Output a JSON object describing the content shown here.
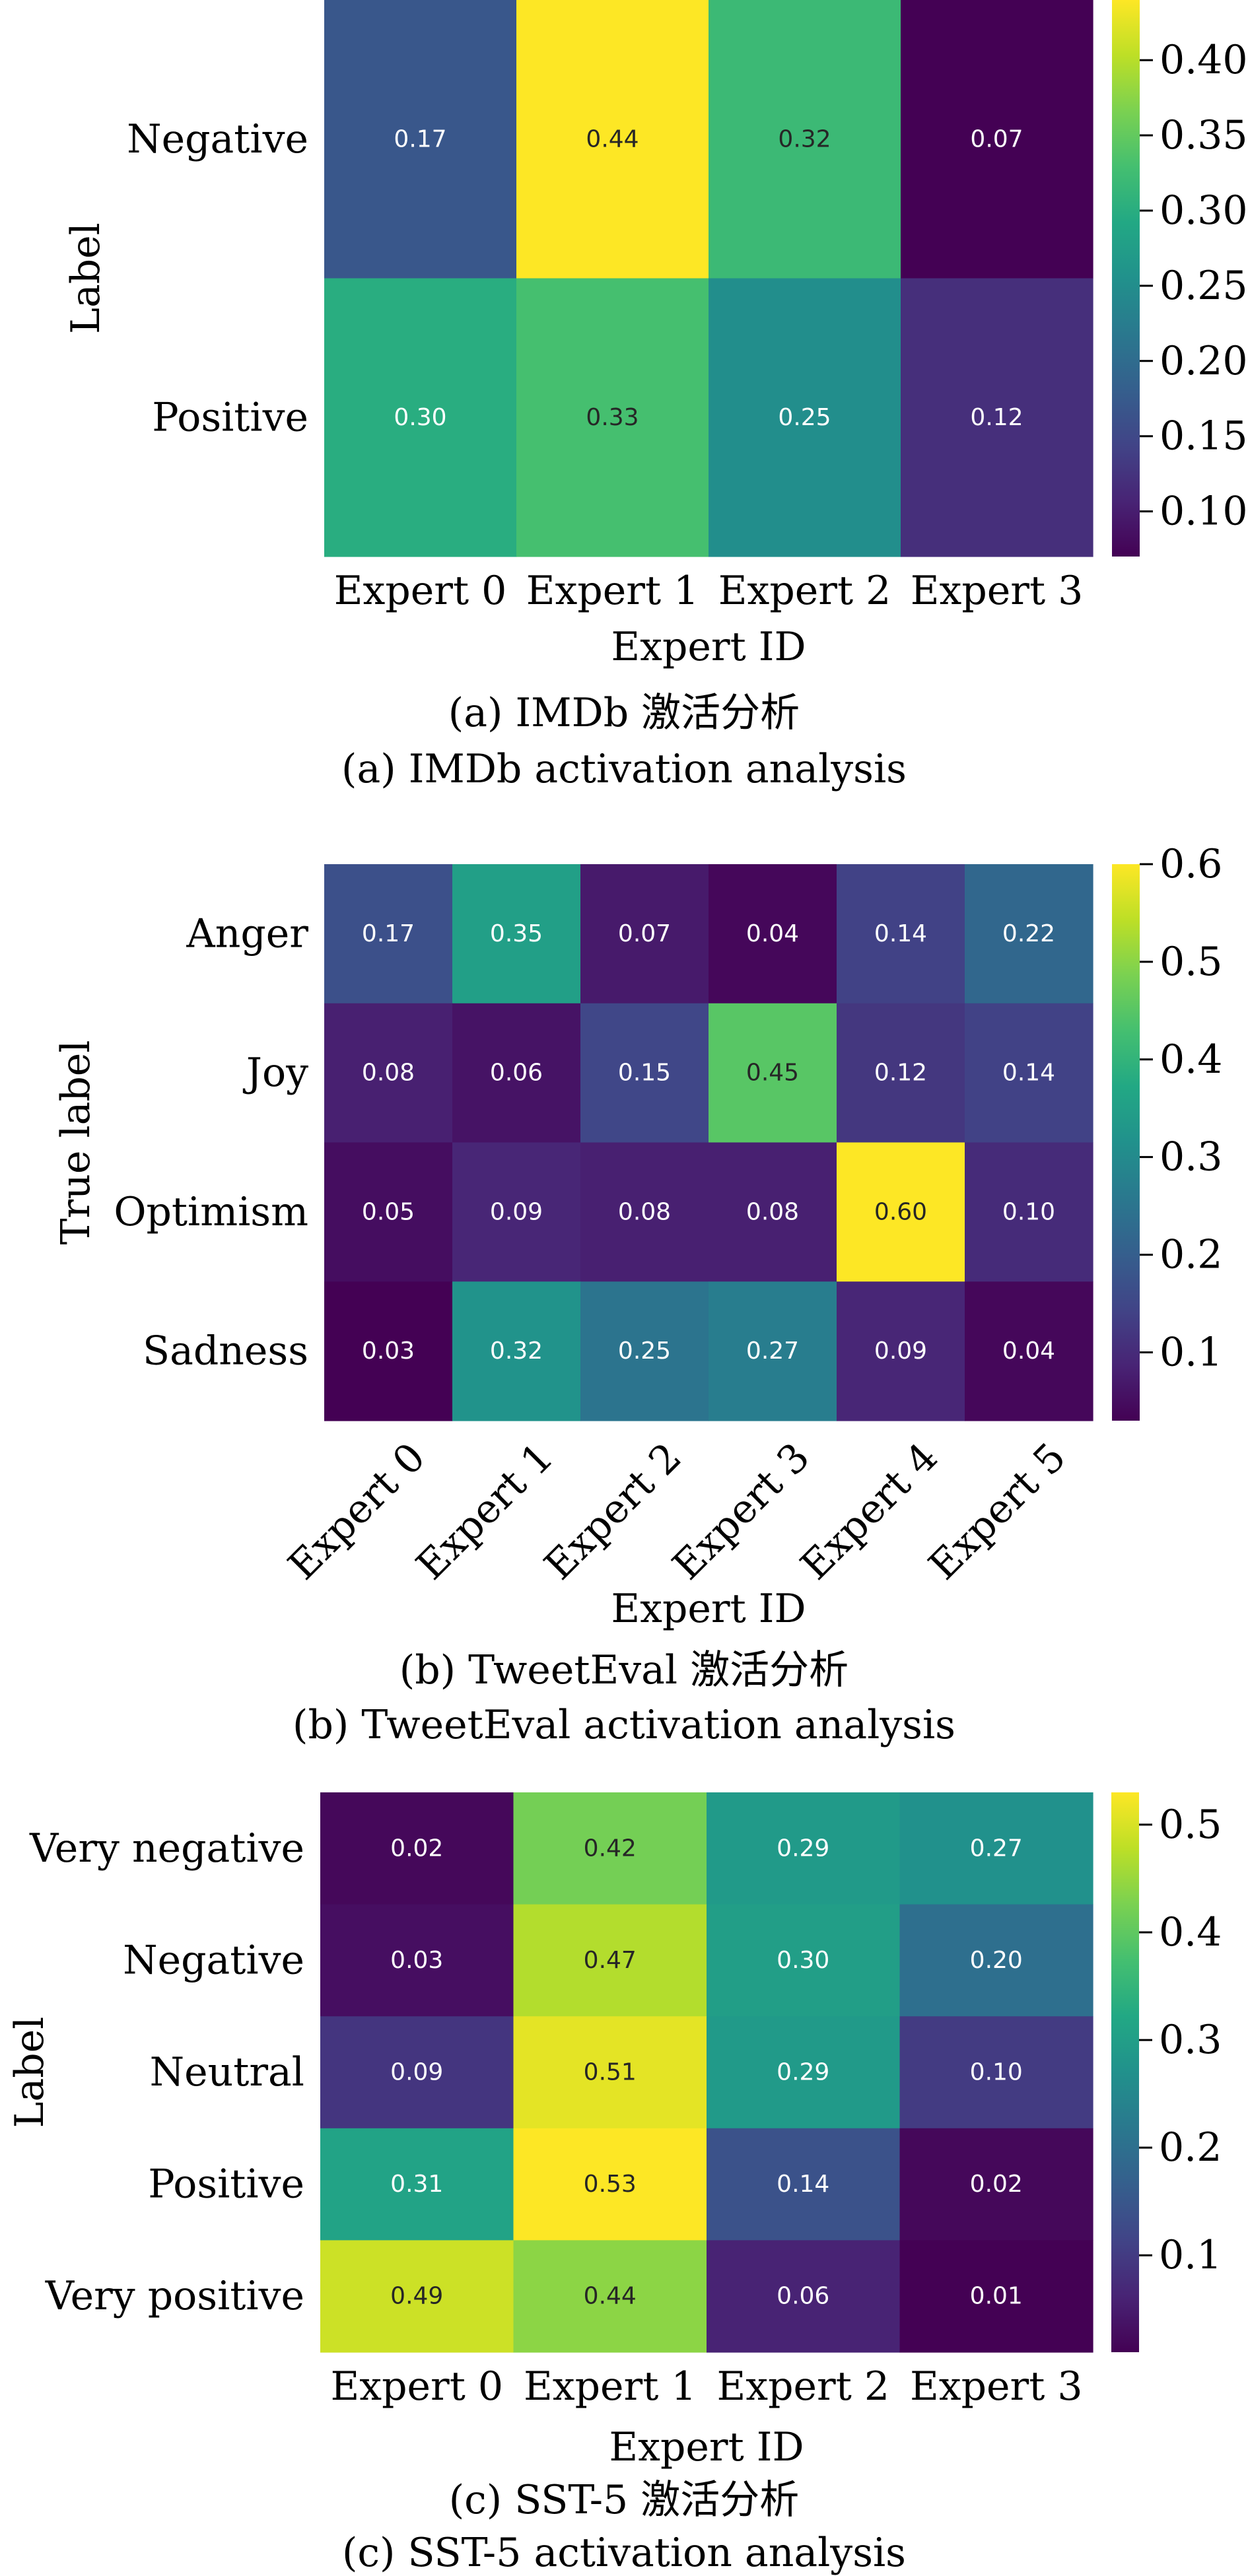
{
  "chart_data": [
    {
      "type": "heatmap",
      "id": "imdb",
      "caption_zh": "(a) IMDb 激活分析",
      "caption_en": "(a) IMDb activation analysis",
      "xlabel": "Expert ID",
      "ylabel": "Label",
      "x_categories": [
        "Expert 0",
        "Expert 1",
        "Expert 2",
        "Expert 3"
      ],
      "y_categories": [
        "Negative",
        "Positive"
      ],
      "values": [
        [
          0.17,
          0.44,
          0.32,
          0.07
        ],
        [
          0.3,
          0.33,
          0.25,
          0.12
        ]
      ],
      "value_labels": [
        [
          "0.17",
          "0.44",
          "0.32",
          "0.07"
        ],
        [
          "0.30",
          "0.33",
          "0.25",
          "0.12"
        ]
      ],
      "colormap": "viridis",
      "color_range": [
        0.07,
        0.44
      ],
      "colorbar_ticks": [
        0.1,
        0.15,
        0.2,
        0.25,
        0.3,
        0.35,
        0.4
      ],
      "colorbar_tick_labels": [
        "0.10",
        "0.15",
        "0.20",
        "0.25",
        "0.30",
        "0.35",
        "0.40"
      ],
      "x_tick_rotation": "horizontal"
    },
    {
      "type": "heatmap",
      "id": "tweeteval",
      "caption_zh": "(b) TweetEval 激活分析",
      "caption_en": "(b) TweetEval activation analysis",
      "xlabel": "Expert ID",
      "ylabel": "True label",
      "x_categories": [
        "Expert 0",
        "Expert 1",
        "Expert 2",
        "Expert 3",
        "Expert 4",
        "Expert 5"
      ],
      "y_categories": [
        "Anger",
        "Joy",
        "Optimism",
        "Sadness"
      ],
      "values": [
        [
          0.17,
          0.35,
          0.07,
          0.04,
          0.14,
          0.22
        ],
        [
          0.08,
          0.06,
          0.15,
          0.45,
          0.12,
          0.14
        ],
        [
          0.05,
          0.09,
          0.08,
          0.08,
          0.6,
          0.1
        ],
        [
          0.03,
          0.32,
          0.25,
          0.27,
          0.09,
          0.04
        ]
      ],
      "value_labels": [
        [
          "0.17",
          "0.35",
          "0.07",
          "0.04",
          "0.14",
          "0.22"
        ],
        [
          "0.08",
          "0.06",
          "0.15",
          "0.45",
          "0.12",
          "0.14"
        ],
        [
          "0.05",
          "0.09",
          "0.08",
          "0.08",
          "0.60",
          "0.10"
        ],
        [
          "0.03",
          "0.32",
          "0.25",
          "0.27",
          "0.09",
          "0.04"
        ]
      ],
      "colormap": "viridis",
      "color_range": [
        0.03,
        0.6
      ],
      "colorbar_ticks": [
        0.1,
        0.2,
        0.3,
        0.4,
        0.5,
        0.6
      ],
      "colorbar_tick_labels": [
        "0.1",
        "0.2",
        "0.3",
        "0.4",
        "0.5",
        "0.6"
      ],
      "x_tick_rotation": "45deg"
    },
    {
      "type": "heatmap",
      "id": "sst5",
      "caption_zh": "(c) SST-5 激活分析",
      "caption_en": "(c) SST-5 activation analysis",
      "xlabel": "Expert ID",
      "ylabel": "Label",
      "x_categories": [
        "Expert 0",
        "Expert 1",
        "Expert 2",
        "Expert 3"
      ],
      "y_categories": [
        "Very negative",
        "Negative",
        "Neutral",
        "Positive",
        "Very positive"
      ],
      "values": [
        [
          0.02,
          0.42,
          0.29,
          0.27
        ],
        [
          0.03,
          0.47,
          0.3,
          0.2
        ],
        [
          0.09,
          0.51,
          0.29,
          0.1
        ],
        [
          0.31,
          0.53,
          0.14,
          0.02
        ],
        [
          0.49,
          0.44,
          0.06,
          0.01
        ]
      ],
      "value_labels": [
        [
          "0.02",
          "0.42",
          "0.29",
          "0.27"
        ],
        [
          "0.03",
          "0.47",
          "0.30",
          "0.20"
        ],
        [
          "0.09",
          "0.51",
          "0.29",
          "0.10"
        ],
        [
          "0.31",
          "0.53",
          "0.14",
          "0.02"
        ],
        [
          "0.49",
          "0.44",
          "0.06",
          "0.01"
        ]
      ],
      "colormap": "viridis",
      "color_range": [
        0.01,
        0.53
      ],
      "colorbar_ticks": [
        0.1,
        0.2,
        0.3,
        0.4,
        0.5
      ],
      "colorbar_tick_labels": [
        "0.1",
        "0.2",
        "0.3",
        "0.4",
        "0.5"
      ],
      "x_tick_rotation": "horizontal"
    }
  ]
}
